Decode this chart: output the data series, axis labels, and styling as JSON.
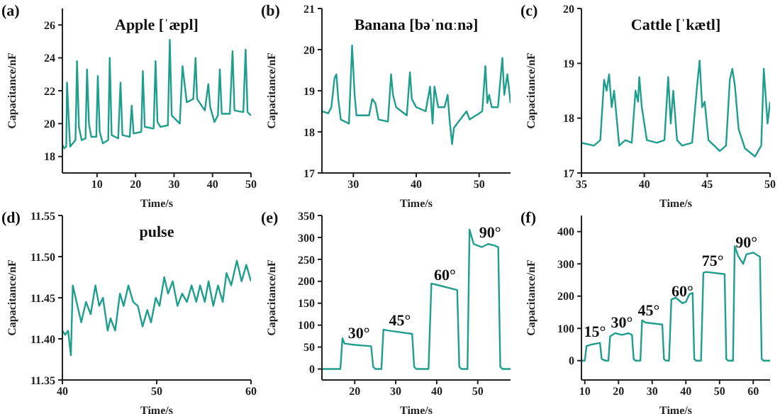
{
  "chart_data": [
    {
      "type": "line",
      "title": "Apple [ˈæpl]",
      "xlabel": "Time/s",
      "ylabel": "Capacitance/nF",
      "annotations": [
        "(a)"
      ],
      "color": "#1f9e8e",
      "xlim": [
        1,
        50
      ],
      "xticks": [
        10,
        20,
        30,
        40,
        50
      ],
      "ylim": [
        17,
        27
      ],
      "yticks": [
        18,
        20,
        22,
        24,
        26
      ],
      "x": [
        1,
        1.5,
        2,
        2.2,
        2.6,
        3,
        4.4,
        4.8,
        5.3,
        6,
        7,
        7.4,
        7.9,
        8.5,
        9.8,
        10.2,
        10.7,
        11.5,
        12.9,
        13.3,
        13.8,
        15.5,
        16.1,
        16.6,
        18.5,
        19,
        19.5,
        21.5,
        21.9,
        22.4,
        24.7,
        25.2,
        25.7,
        26.5,
        28.4,
        28.9,
        29.4,
        31.5,
        32.2,
        32.7,
        33.3,
        35,
        35.6,
        36,
        38,
        38.9,
        39.4,
        40.5,
        41.4,
        41.9,
        42.4,
        44.5,
        45.2,
        45.7,
        48,
        48.6,
        49.1,
        50
      ],
      "values": [
        18.7,
        18.5,
        18.6,
        22.5,
        20.5,
        18.6,
        19,
        23.8,
        19.8,
        19,
        19.1,
        23.3,
        20,
        19.2,
        19.2,
        22.9,
        19.5,
        18.8,
        19,
        24,
        19.3,
        19.1,
        22.5,
        19.3,
        19.2,
        21.1,
        19.4,
        19.5,
        23.2,
        19.8,
        19.7,
        23.8,
        20.1,
        19.8,
        19.9,
        25.1,
        20.5,
        20,
        23.5,
        22.5,
        21.3,
        21.5,
        24,
        21.5,
        20.8,
        22.4,
        21,
        20.1,
        20.5,
        23.3,
        20.6,
        20.6,
        24.4,
        20.8,
        20.7,
        24.5,
        20.7,
        20.5
      ]
    },
    {
      "type": "line",
      "title": "Banana [bəˈnɑːnə]",
      "xlabel": "Time/s",
      "ylabel": "Capacitance/nF",
      "annotations": [
        "(b)"
      ],
      "color": "#1f9e8e",
      "xlim": [
        25,
        55
      ],
      "xticks": [
        30,
        40,
        50
      ],
      "ylim": [
        17,
        21
      ],
      "yticks": [
        17,
        18,
        19,
        20,
        21
      ],
      "x": [
        25,
        26,
        26.5,
        27,
        27.3,
        27.6,
        28,
        29.3,
        29.8,
        30.2,
        30.5,
        32.5,
        33,
        33.5,
        34,
        35.5,
        36,
        36.3,
        36.8,
        38.5,
        39,
        39.3,
        40,
        41.5,
        42.2,
        42.6,
        42.9,
        43.5,
        44.5,
        45,
        45.3,
        45.7,
        46,
        47,
        48,
        48.5,
        50,
        50.5,
        51,
        51.3,
        51.6,
        52,
        53,
        53.7,
        54,
        54.5,
        55
      ],
      "values": [
        18.5,
        18.45,
        18.6,
        19.3,
        19.4,
        18.8,
        18.3,
        18.2,
        20.1,
        18.9,
        18.4,
        18.4,
        18.8,
        18.7,
        18.3,
        18.25,
        19.4,
        18.9,
        18.6,
        18.4,
        19.45,
        18.8,
        18.6,
        18.5,
        19.1,
        18.2,
        19.1,
        18.6,
        18.6,
        18.9,
        18.3,
        17.7,
        18.1,
        18.3,
        18.5,
        18.3,
        18.45,
        18.5,
        19.6,
        18.7,
        18.9,
        18.6,
        18.6,
        19.8,
        18.9,
        19.4,
        18.7
      ]
    },
    {
      "type": "line",
      "title": "Cattle [ˈkætl]",
      "xlabel": "Time/s",
      "ylabel": "Capacitance/nF",
      "annotations": [
        "(c)"
      ],
      "color": "#1f9e8e",
      "xlim": [
        35,
        50
      ],
      "xticks": [
        35,
        40,
        45,
        50
      ],
      "ylim": [
        17,
        20
      ],
      "yticks": [
        17,
        18,
        19,
        20
      ],
      "x": [
        35,
        36,
        36.5,
        36.8,
        37,
        37.2,
        37.4,
        37.6,
        38,
        38.5,
        39,
        39.3,
        39.5,
        39.6,
        39.8,
        40.2,
        41,
        41.6,
        41.9,
        42.1,
        42.3,
        42.6,
        43,
        43.8,
        44.2,
        44.4,
        44.6,
        44.8,
        45.1,
        46,
        46.5,
        46.8,
        47,
        47.2,
        47.5,
        48,
        48.8,
        49.3,
        49.5,
        49.8,
        50
      ],
      "values": [
        17.55,
        17.5,
        17.6,
        18.7,
        18.5,
        18.8,
        18.2,
        18.5,
        17.5,
        17.6,
        17.55,
        18.5,
        18.3,
        18.75,
        18.2,
        17.6,
        17.55,
        17.6,
        18.75,
        17.9,
        18.5,
        17.6,
        17.5,
        17.55,
        18.6,
        19.05,
        18.2,
        18.3,
        17.6,
        17.4,
        17.5,
        18.7,
        18.9,
        18.6,
        17.8,
        17.45,
        17.3,
        17.5,
        18.9,
        17.9,
        18.3
      ]
    },
    {
      "type": "line",
      "title": "pulse",
      "xlabel": "Time/s",
      "ylabel": "Capacitance/nF",
      "annotations": [
        "(d)"
      ],
      "color": "#1f9e8e",
      "xlim": [
        40,
        60
      ],
      "xticks": [
        40,
        50,
        60
      ],
      "ylim": [
        11.35,
        11.55
      ],
      "yticks": [
        {
          "value": 11.35,
          "label": "11.35"
        },
        {
          "value": 11.4,
          "label": "11.40"
        },
        {
          "value": 11.45,
          "label": "11.45"
        },
        {
          "value": 11.5,
          "label": "11.50"
        },
        {
          "value": 11.55,
          "label": "11.55"
        }
      ],
      "x": [
        40,
        40.3,
        40.6,
        40.9,
        41.1,
        41.6,
        42,
        42.5,
        43,
        43.5,
        43.9,
        44.3,
        44.8,
        45.1,
        45.6,
        46.1,
        46.5,
        47,
        47.5,
        48,
        48.5,
        49,
        49.4,
        49.9,
        50.3,
        50.8,
        51.2,
        51.7,
        52.2,
        52.7,
        53.2,
        53.7,
        54.2,
        54.6,
        55.1,
        55.5,
        56,
        56.5,
        57,
        57.4,
        57.9,
        58.5,
        59,
        59.5,
        60
      ],
      "values": [
        11.41,
        11.405,
        11.41,
        11.38,
        11.465,
        11.44,
        11.42,
        11.445,
        11.43,
        11.465,
        11.44,
        11.45,
        11.41,
        11.425,
        11.41,
        11.455,
        11.44,
        11.465,
        11.445,
        11.44,
        11.415,
        11.435,
        11.42,
        11.45,
        11.44,
        11.475,
        11.455,
        11.47,
        11.44,
        11.455,
        11.445,
        11.465,
        11.445,
        11.465,
        11.445,
        11.47,
        11.44,
        11.465,
        11.445,
        11.48,
        11.465,
        11.495,
        11.47,
        11.49,
        11.47
      ]
    },
    {
      "type": "line",
      "xlabel": "Time/s",
      "ylabel": "Capacitance/nF",
      "annotations": [
        "(e)",
        {
          "text": "30°",
          "x": 21,
          "y": 54
        },
        {
          "text": "45°",
          "x": 31,
          "y": 84
        },
        {
          "text": "60°",
          "x": 42,
          "y": 187
        },
        {
          "text": "90°",
          "x": 53,
          "y": 284
        }
      ],
      "color": "#1f9e8e",
      "xlim": [
        12,
        58
      ],
      "xticks": [
        20,
        30,
        40,
        50
      ],
      "ylim": [
        -25,
        350
      ],
      "yticks": [
        0,
        50,
        100,
        150,
        200,
        250,
        300,
        350
      ],
      "x": [
        12,
        16.5,
        17,
        17.5,
        20,
        24,
        24.5,
        25,
        26.5,
        27,
        28,
        34,
        34.5,
        35,
        38,
        38.7,
        40,
        45,
        45.5,
        46,
        47.5,
        48,
        49,
        51,
        52.5,
        54,
        55,
        55.5,
        56,
        58
      ],
      "values": [
        0,
        0,
        70,
        58,
        55,
        52,
        5,
        0,
        0,
        90,
        88,
        80,
        5,
        0,
        0,
        195,
        192,
        180,
        5,
        0,
        0,
        318,
        285,
        278,
        285,
        282,
        278,
        5,
        0,
        0
      ]
    },
    {
      "type": "line",
      "xlabel": "Time/s",
      "ylabel": "Capacitance/nF",
      "annotations": [
        "(f)",
        {
          "text": "15°",
          "x": 13,
          "y": 52
        },
        {
          "text": "30°",
          "x": 21,
          "y": 80
        },
        {
          "text": "45°",
          "x": 29,
          "y": 117
        },
        {
          "text": "60°",
          "x": 39,
          "y": 178
        },
        {
          "text": "75°",
          "x": 48,
          "y": 272.5
        },
        {
          "text": "90°",
          "x": 58,
          "y": 330
        }
      ],
      "color": "#1f9e8e",
      "xlim": [
        9,
        65
      ],
      "xticks": [
        10,
        20,
        30,
        40,
        50,
        60
      ],
      "ylim": [
        -60,
        450
      ],
      "yticks": [
        0,
        100,
        200,
        300,
        400
      ],
      "x": [
        9,
        10,
        10.5,
        12,
        14.5,
        15,
        16,
        17,
        17.5,
        19,
        21,
        23,
        24,
        24.5,
        25,
        26.5,
        27,
        28,
        33,
        33.5,
        34,
        35,
        35.7,
        37,
        39,
        40,
        41,
        42,
        42.5,
        43,
        44.5,
        45.2,
        46,
        51.5,
        52,
        52.5,
        54,
        54.5,
        55.5,
        57,
        58,
        60,
        62,
        62.5,
        63,
        65
      ],
      "values": [
        0,
        0,
        45,
        50,
        55,
        5,
        0,
        0,
        75,
        85,
        80,
        85,
        80,
        5,
        0,
        0,
        125,
        118,
        112,
        5,
        0,
        0,
        190,
        195,
        178,
        182,
        205,
        210,
        5,
        0,
        0,
        272,
        275,
        268,
        5,
        0,
        0,
        355,
        325,
        300,
        330,
        335,
        322,
        5,
        0,
        0
      ]
    }
  ]
}
